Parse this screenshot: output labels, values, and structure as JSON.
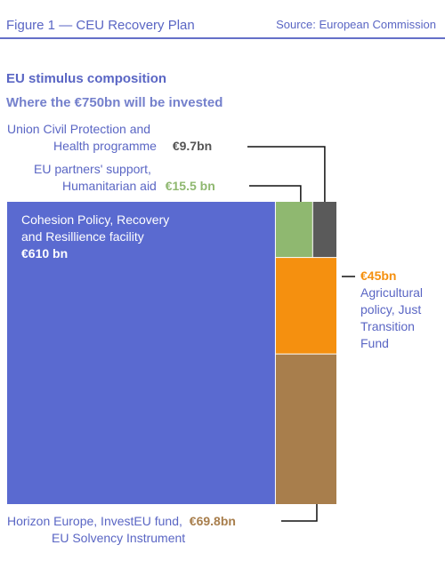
{
  "header": {
    "figure_title": "Figure 1 — CEU Recovery Plan",
    "source": "Source: European Commission"
  },
  "chart_data": {
    "type": "treemap",
    "title": "EU stimulus composition",
    "subtitle": "Where the €750bn will be invested",
    "unit": "€bn",
    "total": 750,
    "items": [
      {
        "label_lines": [
          "Cohesion Policy, Recovery",
          "and Resillience facility"
        ],
        "value_label": "€610 bn",
        "value": 610,
        "color": "#5a6ad0"
      },
      {
        "label_lines": [
          "EU partners' support,",
          "Humanitarian aid"
        ],
        "value_label": "€15.5 bn",
        "value": 15.5,
        "color": "#8fb870"
      },
      {
        "label_lines": [
          "Union Civil Protection and",
          "Health programme"
        ],
        "value_label": "€9.7bn",
        "value": 9.7,
        "color": "#5a5a5a"
      },
      {
        "label_lines": [
          "Agricultural",
          "policy, Just",
          "Transition",
          "Fund"
        ],
        "value_label": "€45bn",
        "value": 45,
        "color": "#f5900f"
      },
      {
        "label_lines": [
          "Horizon Europe, InvestEU fund,",
          "EU Solvency Instrument"
        ],
        "value_label": "€69.8bn",
        "value": 69.8,
        "color": "#a87e4c"
      }
    ]
  }
}
